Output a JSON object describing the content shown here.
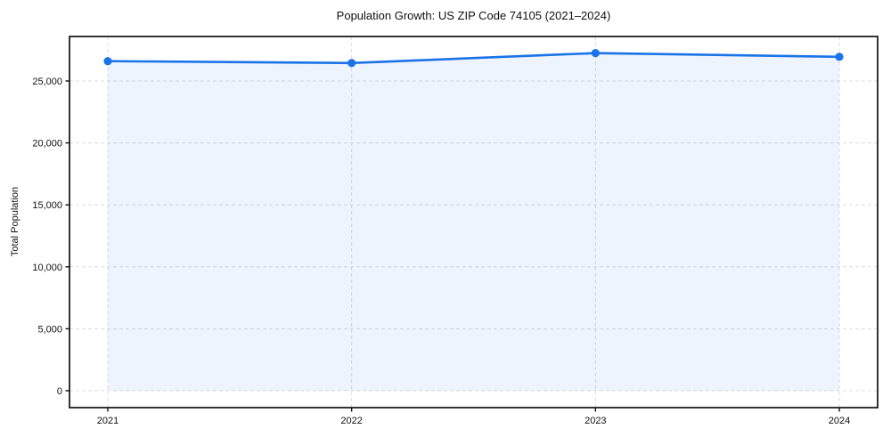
{
  "figure": {
    "background": "#ffffff"
  },
  "chart_data": {
    "type": "area",
    "title": "Population Growth: US ZIP Code 74105 (2021–2024)",
    "xlabel": "",
    "ylabel": "Total Population",
    "categories": [
      "2021",
      "2022",
      "2023",
      "2024"
    ],
    "series": [
      {
        "name": "Total Population",
        "values": [
          26600,
          26450,
          27250,
          26950
        ]
      }
    ],
    "yticks": [
      0,
      5000,
      10000,
      15000,
      20000,
      25000
    ],
    "ytick_labels": [
      "0",
      "5,000",
      "10,000",
      "15,000",
      "20,000",
      "25,000"
    ],
    "ylim": [
      -1365,
      28590
    ],
    "grid": {
      "visible": true,
      "style": "dashed",
      "color": "#dcdcdc"
    },
    "legend_visible": false,
    "line_color": "#1a73e8",
    "marker_color": "#1a73e8",
    "marker_shape": "circle",
    "fill_color": "#1a73e8",
    "fill_opacity": 0.08,
    "frame_color": "#111111",
    "tick_color": "#111111"
  }
}
